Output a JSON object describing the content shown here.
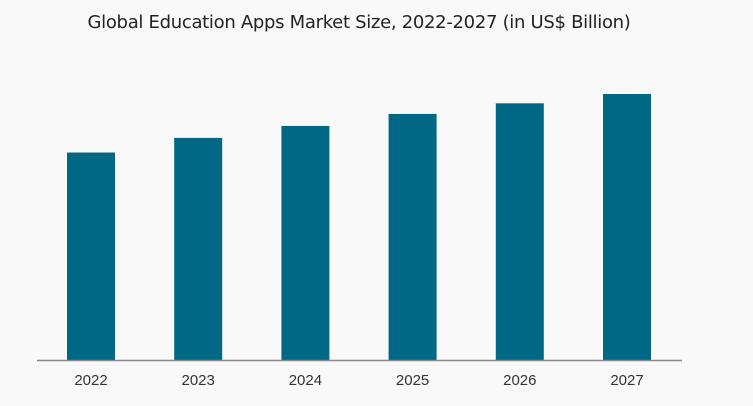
{
  "chart_data": {
    "type": "bar",
    "title": "Global Education Apps Market Size, 2022-2027 (in US$ Billion)",
    "categories": [
      "2022",
      "2023",
      "2024",
      "2025",
      "2026",
      "2027"
    ],
    "values": [
      78,
      83.5,
      88,
      92.5,
      96.5,
      100
    ],
    "value_note": "relative bar heights; no value axis or data labels printed",
    "xlabel": "",
    "ylabel": "",
    "ylim": [
      0,
      100
    ],
    "grid": false,
    "legend": "none",
    "colors": {
      "bar": "#006885",
      "axis": "#888888"
    }
  }
}
